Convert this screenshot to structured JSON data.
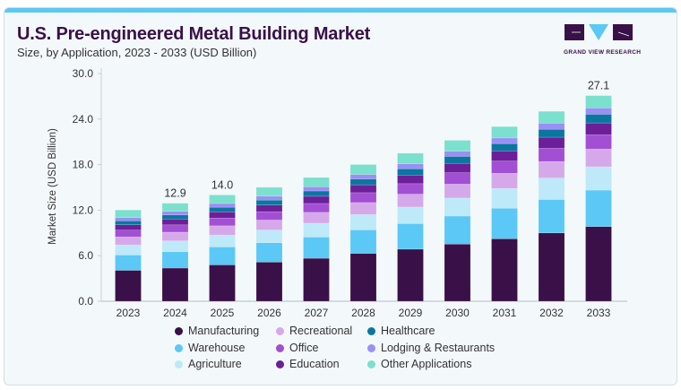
{
  "header": {
    "title": "U.S. Pre-engineered Metal Building Market",
    "subtitle": "Size, by Application, 2023 - 2033 (USD Billion)",
    "logo_text": "GRAND VIEW RESEARCH"
  },
  "colors": {
    "accent_bar": "#5bc8f5",
    "brand": "#3a1048"
  },
  "chart_data": {
    "type": "bar",
    "stacked": true,
    "title": "U.S. Pre-engineered Metal Building Market",
    "subtitle": "Size, by Application, 2023 - 2033 (USD Billion)",
    "xlabel": "",
    "ylabel": "Market Size (USD Billion)",
    "ylim": [
      0,
      30
    ],
    "yticks": [
      "0.0",
      "6.0",
      "12.0",
      "18.0",
      "24.0",
      "30.0"
    ],
    "grid": false,
    "legend_position": "bottom",
    "categories": [
      "2023",
      "2024",
      "2025",
      "2026",
      "2027",
      "2028",
      "2029",
      "2030",
      "2031",
      "2032",
      "2033"
    ],
    "data_labels": {
      "2024": "12.9",
      "2025": "14.0",
      "2033": "27.1"
    },
    "series": [
      {
        "name": "Manufacturing",
        "color": "#3a1048",
        "values": [
          4.07,
          4.37,
          4.79,
          5.16,
          5.66,
          6.3,
          6.86,
          7.53,
          8.23,
          9.0,
          9.84
        ]
      },
      {
        "name": "Warehouse",
        "color": "#5bc8f5",
        "values": [
          2.02,
          2.16,
          2.37,
          2.55,
          2.79,
          3.1,
          3.37,
          3.69,
          4.03,
          4.4,
          4.8
        ]
      },
      {
        "name": "Agriculture",
        "color": "#bde9f8",
        "values": [
          1.33,
          1.43,
          1.55,
          1.67,
          1.83,
          2.02,
          2.18,
          2.37,
          2.6,
          2.83,
          3.06
        ]
      },
      {
        "name": "Recreational",
        "color": "#d5a9e9",
        "values": [
          1.06,
          1.14,
          1.23,
          1.32,
          1.43,
          1.58,
          1.7,
          1.84,
          2.0,
          2.18,
          2.35
        ]
      },
      {
        "name": "Office",
        "color": "#a24fd4",
        "values": [
          0.89,
          0.96,
          1.02,
          1.1,
          1.17,
          1.3,
          1.38,
          1.51,
          1.61,
          1.75,
          1.88
        ]
      },
      {
        "name": "Education",
        "color": "#6c1f98",
        "values": [
          0.7,
          0.75,
          0.81,
          0.87,
          0.95,
          1.04,
          1.13,
          1.23,
          1.33,
          1.45,
          1.56
        ]
      },
      {
        "name": "Healthcare",
        "color": "#0b77a0",
        "values": [
          0.53,
          0.57,
          0.62,
          0.66,
          0.7,
          0.77,
          0.84,
          0.91,
          0.97,
          1.05,
          1.14
        ]
      },
      {
        "name": "Lodging & Restaurants",
        "color": "#9a8ff5",
        "values": [
          0.42,
          0.46,
          0.49,
          0.51,
          0.55,
          0.59,
          0.64,
          0.68,
          0.74,
          0.78,
          0.83
        ]
      },
      {
        "name": "Other Applications",
        "color": "#7be0cd",
        "values": [
          1.0,
          1.07,
          1.12,
          1.17,
          1.22,
          1.31,
          1.4,
          1.44,
          1.5,
          1.58,
          1.63
        ]
      }
    ]
  }
}
